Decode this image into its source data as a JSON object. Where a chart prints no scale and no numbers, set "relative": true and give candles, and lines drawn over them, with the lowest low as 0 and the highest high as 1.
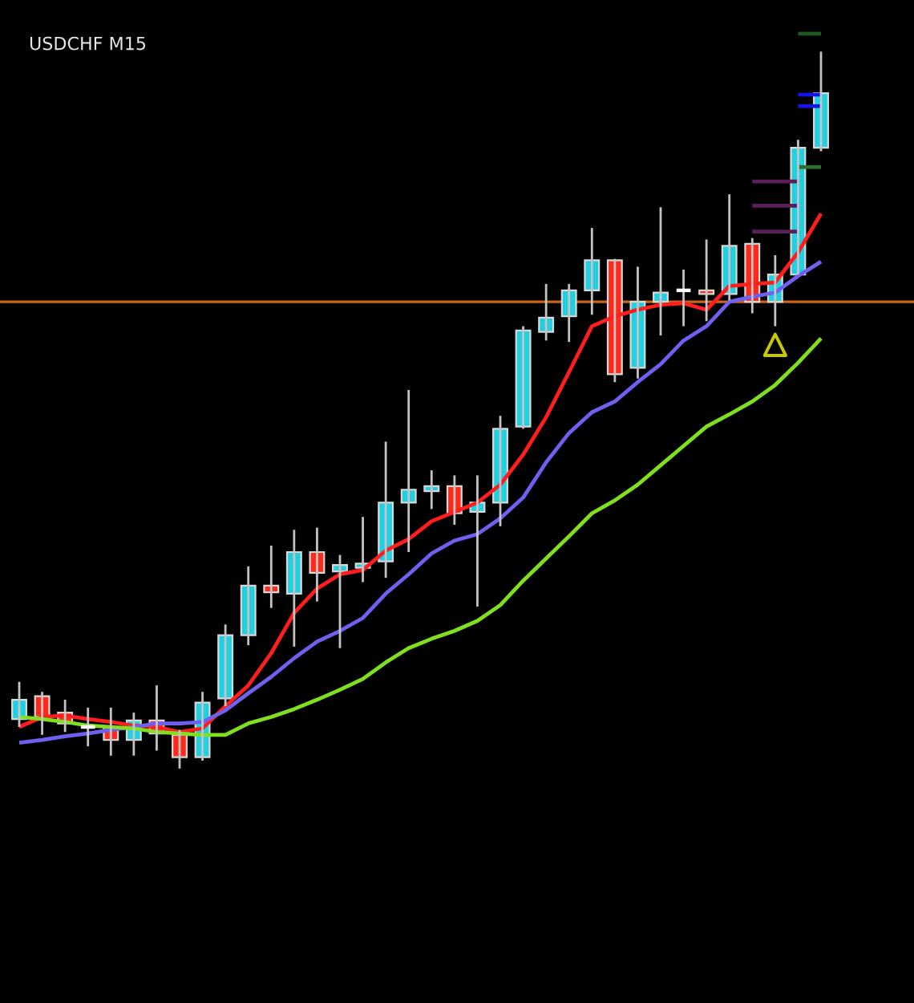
{
  "chart_data": {
    "type": "candlestick",
    "title": "USDCHF M15",
    "relative": true,
    "categories": [
      null,
      null,
      null,
      null,
      null,
      null,
      null,
      null,
      null,
      null,
      null,
      null,
      null,
      null,
      null,
      null,
      null,
      null,
      null,
      null,
      null,
      null,
      null,
      null,
      null,
      null,
      null,
      null,
      null,
      null,
      null,
      null,
      null,
      null,
      null,
      null
    ],
    "ohlc": [
      [
        0.069,
        0.121,
        0.058,
        0.096
      ],
      [
        0.101,
        0.107,
        0.047,
        0.072
      ],
      [
        0.078,
        0.096,
        0.051,
        0.063
      ],
      [
        0.058,
        0.085,
        0.031,
        0.058
      ],
      [
        0.058,
        0.085,
        0.018,
        0.04
      ],
      [
        0.04,
        0.078,
        0.018,
        0.067
      ],
      [
        0.067,
        0.116,
        0.025,
        0.049
      ],
      [
        0.047,
        0.054,
        0,
        0.016
      ],
      [
        0.016,
        0.107,
        0.011,
        0.092
      ],
      [
        0.098,
        0.201,
        0.087,
        0.186
      ],
      [
        0.186,
        0.282,
        0.172,
        0.255
      ],
      [
        0.255,
        0.311,
        0.224,
        0.246
      ],
      [
        0.244,
        0.333,
        0.17,
        0.302
      ],
      [
        0.302,
        0.336,
        0.233,
        0.273
      ],
      [
        0.275,
        0.298,
        0.168,
        0.284
      ],
      [
        0.28,
        0.351,
        0.26,
        0.286
      ],
      [
        0.289,
        0.456,
        0.266,
        0.371
      ],
      [
        0.371,
        0.528,
        0.302,
        0.389
      ],
      [
        0.387,
        0.416,
        0.362,
        0.394
      ],
      [
        0.394,
        0.409,
        0.34,
        0.356
      ],
      [
        0.358,
        0.409,
        0.226,
        0.371
      ],
      [
        0.371,
        0.492,
        0.338,
        0.474
      ],
      [
        0.477,
        0.617,
        0.474,
        0.611
      ],
      [
        0.609,
        0.676,
        0.597,
        0.629
      ],
      [
        0.631,
        0.676,
        0.595,
        0.667
      ],
      [
        0.667,
        0.754,
        0.633,
        0.709
      ],
      [
        0.709,
        0.711,
        0.539,
        0.55
      ],
      [
        0.559,
        0.7,
        0.544,
        0.651
      ],
      [
        0.651,
        0.783,
        0.604,
        0.664
      ],
      [
        0.667,
        0.696,
        0.617,
        0.667
      ],
      [
        0.667,
        0.738,
        0.624,
        0.662
      ],
      [
        0.662,
        0.801,
        0.653,
        0.729
      ],
      [
        0.732,
        0.74,
        0.635,
        0.651
      ],
      [
        0.651,
        0.716,
        0.617,
        0.689
      ],
      [
        0.689,
        0.877,
        0.689,
        0.866
      ],
      [
        0.866,
        1,
        0.861,
        0.942
      ]
    ],
    "colors": [
      "#20d0e0",
      "#ff2a1a",
      "#ff2a1a",
      "#ffffff",
      "#ff2a1a",
      "#20d0e0",
      "#ff2a1a",
      "#ff2a1a",
      "#20d0e0",
      "#20d0e0",
      "#20d0e0",
      "#ff2a1a",
      "#20d0e0",
      "#ff2a1a",
      "#20d0e0",
      "#20d0e0",
      "#20d0e0",
      "#20d0e0",
      "#20d0e0",
      "#ff2a1a",
      "#20d0e0",
      "#20d0e0",
      "#20d0e0",
      "#20d0e0",
      "#20d0e0",
      "#20d0e0",
      "#ff2a1a",
      "#20d0e0",
      "#20d0e0",
      "#ffffff",
      "#ff2a1a",
      "#20d0e0",
      "#ff2a1a",
      "#20d0e0",
      "#20d0e0",
      "#20d0e0"
    ],
    "ref_lines": [
      {
        "axis": "y",
        "value": 0.651,
        "color": "#c8641e"
      }
    ],
    "series": [
      {
        "type": "line",
        "color": "#ff1e1e",
        "values": [
          0.058,
          0.072,
          0.074,
          0.069,
          0.065,
          0.06,
          0.058,
          0.051,
          0.056,
          0.087,
          0.116,
          0.161,
          0.217,
          0.251,
          0.271,
          0.277,
          0.304,
          0.32,
          0.345,
          0.358,
          0.371,
          0.396,
          0.438,
          0.49,
          0.553,
          0.617,
          0.631,
          0.64,
          0.647,
          0.649,
          0.64,
          0.673,
          0.676,
          0.678,
          0.72,
          0.774
        ]
      },
      {
        "type": "line",
        "color": "#7060f0",
        "values": [
          0.036,
          0.04,
          0.045,
          0.049,
          0.054,
          0.058,
          0.063,
          0.063,
          0.065,
          0.081,
          0.105,
          0.128,
          0.154,
          0.177,
          0.192,
          0.21,
          0.244,
          0.271,
          0.3,
          0.318,
          0.327,
          0.349,
          0.378,
          0.427,
          0.468,
          0.497,
          0.512,
          0.539,
          0.564,
          0.597,
          0.617,
          0.651,
          0.658,
          0.664,
          0.687,
          0.707
        ]
      },
      {
        "type": "line",
        "color": "#80e020",
        "values": [
          0.072,
          0.069,
          0.065,
          0.06,
          0.058,
          0.056,
          0.051,
          0.049,
          0.047,
          0.047,
          0.063,
          0.072,
          0.083,
          0.096,
          0.11,
          0.125,
          0.148,
          0.168,
          0.181,
          0.192,
          0.206,
          0.228,
          0.262,
          0.293,
          0.324,
          0.356,
          0.374,
          0.396,
          0.423,
          0.45,
          0.477,
          0.494,
          0.512,
          0.535,
          0.566,
          0.6
        ]
      },
      {
        "type": "line",
        "color": "#1414e6",
        "values": [
          null,
          null,
          null,
          null,
          null,
          null,
          null,
          null,
          null,
          null,
          null,
          null,
          null,
          null,
          null,
          null,
          null,
          null,
          null,
          null,
          null,
          null,
          null,
          null,
          null,
          null,
          null,
          null,
          null,
          null,
          null,
          null,
          null,
          null,
          0.94,
          0.94
        ]
      },
      {
        "type": "line",
        "color": "#1414e6",
        "values": [
          null,
          null,
          null,
          null,
          null,
          null,
          null,
          null,
          null,
          null,
          null,
          null,
          null,
          null,
          null,
          null,
          null,
          null,
          null,
          null,
          null,
          null,
          null,
          null,
          null,
          null,
          null,
          null,
          null,
          null,
          null,
          null,
          null,
          null,
          0.924,
          0.924
        ]
      },
      {
        "type": "line",
        "color": "#2e6e2e",
        "values": [
          null,
          null,
          null,
          null,
          null,
          null,
          null,
          null,
          null,
          null,
          null,
          null,
          null,
          null,
          null,
          null,
          null,
          null,
          null,
          null,
          null,
          null,
          null,
          null,
          null,
          null,
          null,
          null,
          null,
          null,
          null,
          null,
          null,
          null,
          0.839,
          0.839
        ]
      },
      {
        "type": "line",
        "color": "#5a1e5a",
        "values": [
          null,
          null,
          null,
          null,
          null,
          null,
          null,
          null,
          null,
          null,
          null,
          null,
          null,
          null,
          null,
          null,
          null,
          null,
          null,
          null,
          null,
          null,
          null,
          null,
          null,
          null,
          null,
          null,
          null,
          null,
          null,
          null,
          0.819,
          0.819,
          0.819,
          null
        ]
      },
      {
        "type": "line",
        "color": "#5a1e5a",
        "values": [
          null,
          null,
          null,
          null,
          null,
          null,
          null,
          null,
          null,
          null,
          null,
          null,
          null,
          null,
          null,
          null,
          null,
          null,
          null,
          null,
          null,
          null,
          null,
          null,
          null,
          null,
          null,
          null,
          null,
          null,
          null,
          null,
          0.785,
          0.785,
          0.785,
          null
        ]
      },
      {
        "type": "line",
        "color": "#5a1e5a",
        "values": [
          null,
          null,
          null,
          null,
          null,
          null,
          null,
          null,
          null,
          null,
          null,
          null,
          null,
          null,
          null,
          null,
          null,
          null,
          null,
          null,
          null,
          null,
          null,
          null,
          null,
          null,
          null,
          null,
          null,
          null,
          null,
          null,
          0.749,
          0.749,
          0.749,
          null
        ]
      },
      {
        "type": "scatter",
        "color": "#c8c800",
        "marker": "triangle",
        "values": [
          null,
          null,
          null,
          null,
          null,
          null,
          null,
          null,
          null,
          null,
          null,
          null,
          null,
          null,
          null,
          null,
          null,
          null,
          null,
          null,
          null,
          null,
          null,
          null,
          null,
          null,
          null,
          null,
          null,
          null,
          null,
          null,
          null,
          0.591,
          null,
          null
        ]
      }
    ]
  }
}
